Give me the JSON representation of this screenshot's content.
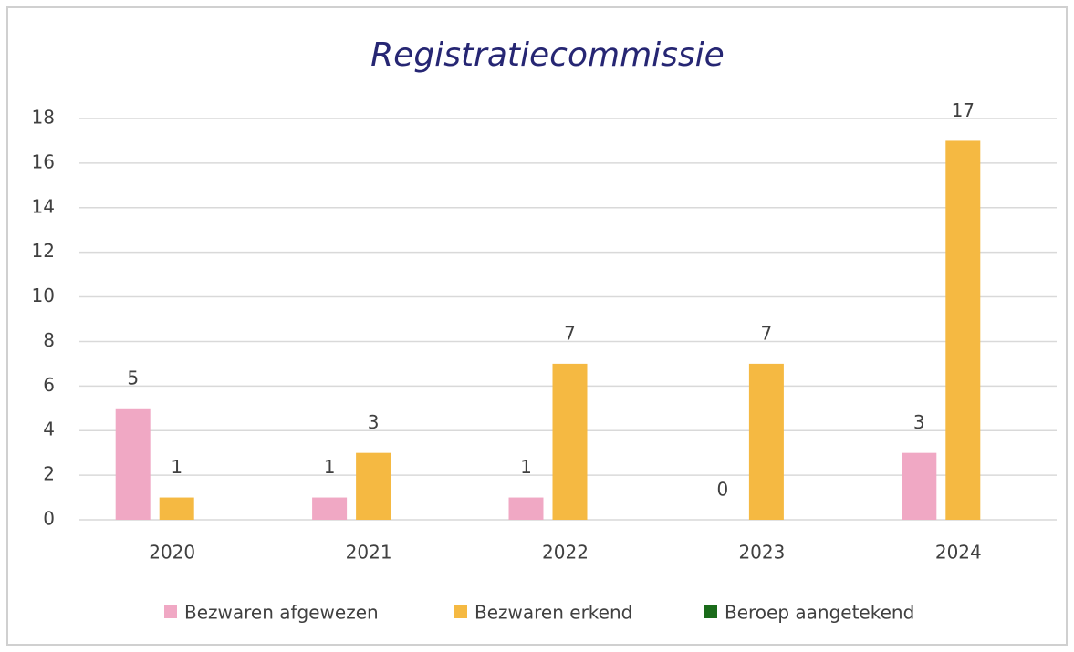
{
  "chart_data": {
    "type": "bar",
    "title": "Registratiecommissie",
    "categories": [
      "2020",
      "2021",
      "2022",
      "2023",
      "2024"
    ],
    "series": [
      {
        "name": "Bezwaren afgewezen",
        "color": "#f0a8c4",
        "values": [
          5,
          1,
          1,
          0,
          3
        ]
      },
      {
        "name": "Bezwaren erkend",
        "color": "#f5b942",
        "values": [
          1,
          3,
          7,
          7,
          17
        ]
      },
      {
        "name": "Beroep aangetekend",
        "color": "#1a6b1a",
        "values": [
          null,
          null,
          null,
          null,
          null
        ]
      }
    ],
    "ylim": [
      0,
      18
    ],
    "yticks": [
      0,
      2,
      4,
      6,
      8,
      10,
      12,
      14,
      16,
      18
    ],
    "grid": true,
    "legend": "bottom"
  }
}
